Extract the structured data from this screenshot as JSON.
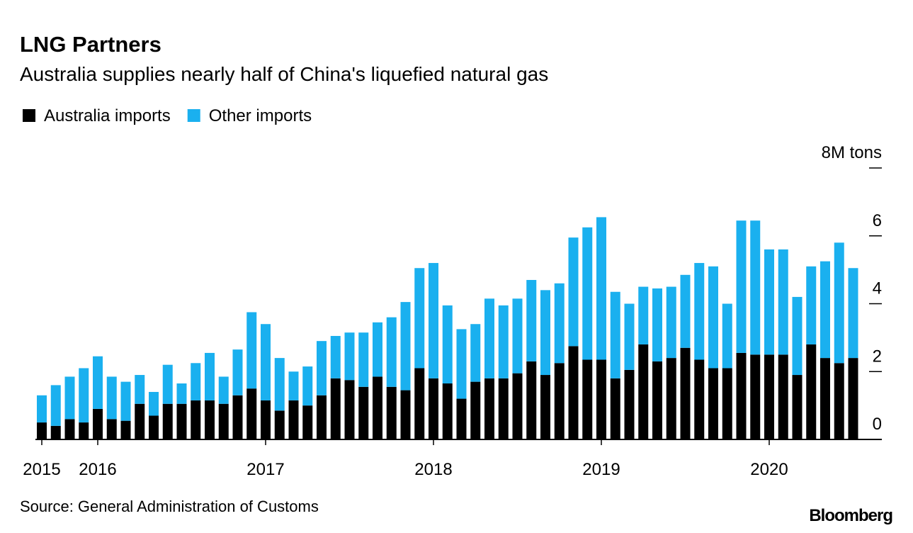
{
  "chart_data": {
    "type": "stacked_bar",
    "title": "LNG Partners",
    "subtitle": "Australia supplies nearly half of China's liquefied natural gas",
    "source": "Source: General Administration of Customs",
    "credit": "Bloomberg",
    "categories": [
      "2015",
      null,
      null,
      null,
      "2016",
      null,
      null,
      null,
      null,
      null,
      null,
      null,
      null,
      null,
      null,
      null,
      "2017",
      null,
      null,
      null,
      null,
      null,
      null,
      null,
      null,
      null,
      null,
      null,
      "2018",
      null,
      null,
      null,
      null,
      null,
      null,
      null,
      null,
      null,
      null,
      null,
      "2019",
      null,
      null,
      null,
      null,
      null,
      null,
      null,
      null,
      null,
      null,
      null,
      "2020",
      null,
      null,
      null,
      null,
      null,
      null
    ],
    "series": [
      {
        "name": "Australia imports",
        "color": "#000000",
        "values": [
          0.5,
          0.4,
          0.6,
          0.5,
          0.9,
          0.6,
          0.55,
          1.05,
          0.7,
          1.05,
          1.05,
          1.15,
          1.15,
          1.05,
          1.3,
          1.5,
          1.15,
          0.85,
          1.15,
          1.0,
          1.3,
          1.8,
          1.75,
          1.55,
          1.85,
          1.55,
          1.45,
          2.1,
          1.8,
          1.65,
          1.2,
          1.7,
          1.8,
          1.8,
          1.95,
          2.3,
          1.9,
          2.25,
          2.75,
          2.35,
          2.35,
          1.8,
          2.05,
          2.8,
          2.3,
          2.4,
          2.7,
          2.35,
          2.1,
          2.1,
          2.55,
          2.5,
          2.5,
          2.5,
          1.9,
          2.8,
          2.4,
          2.25,
          2.4
        ]
      },
      {
        "name": "Other imports",
        "color": "#1ab0ef",
        "values": [
          0.8,
          1.2,
          1.25,
          1.6,
          1.55,
          1.25,
          1.15,
          0.85,
          0.7,
          1.15,
          0.6,
          1.1,
          1.4,
          0.8,
          1.35,
          2.25,
          2.25,
          1.55,
          0.85,
          1.15,
          1.6,
          1.25,
          1.4,
          1.6,
          1.6,
          2.05,
          2.6,
          2.95,
          3.4,
          2.3,
          2.05,
          1.7,
          2.35,
          2.15,
          2.2,
          2.4,
          2.5,
          2.35,
          3.2,
          3.9,
          4.2,
          2.55,
          1.95,
          1.7,
          2.15,
          2.1,
          2.15,
          2.85,
          3.0,
          1.9,
          3.9,
          3.95,
          3.1,
          3.1,
          2.3,
          2.3,
          2.85,
          3.55,
          2.65
        ]
      }
    ],
    "ylim": [
      0,
      8
    ],
    "yticks": [
      0,
      2,
      4,
      6,
      {
        "value": 8,
        "label": "8M tons"
      }
    ],
    "legend": "top-left"
  }
}
